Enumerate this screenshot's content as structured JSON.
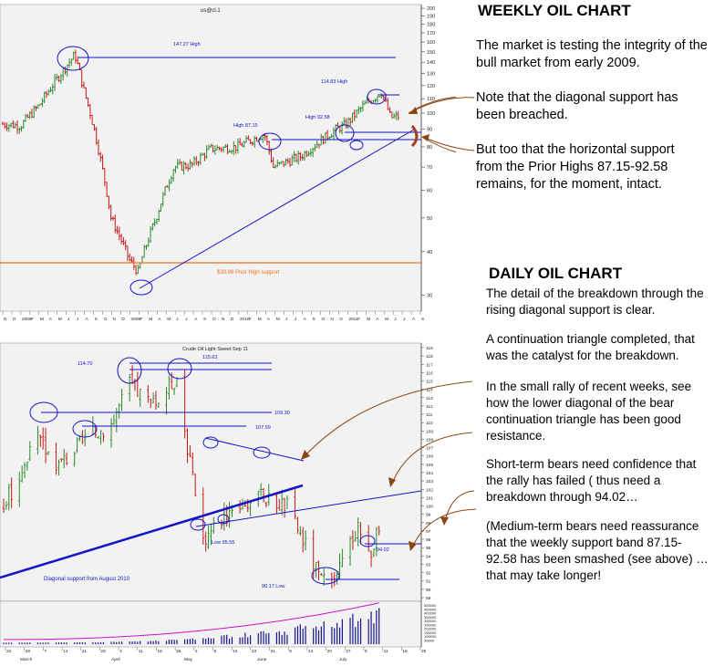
{
  "weekly": {
    "heading": "WEEKLY OIL CHART",
    "chart_title": "us@cl.1",
    "paragraphs": [
      "The market is testing the integrity of the bull market from early 2009.",
      "Note that the diagonal support has been breached.",
      "But too that the horizontal support from the Prior Highs 87.15-92.58 remains, for the moment, intact."
    ],
    "annotations": {
      "high_147": "147.27 High",
      "high_114": "114.83 High",
      "high_87": "High 87.15",
      "high_92": "High 92.58",
      "support_39": "$39.99 Prior High support"
    },
    "colors": {
      "up": "#2a8a2a",
      "down": "#c81818",
      "line": "#1414c8",
      "support": "#f07020",
      "bg": "#f2f2f2"
    }
  },
  "daily": {
    "heading": "DAILY OIL CHART",
    "chart_title": "Crude Oil Light Sweet Sep 11",
    "paragraphs": [
      "The detail of the breakdown through the rising diagonal support is clear.",
      "A continuation triangle completed, that was the catalyst for the breakdown.",
      "In the small rally of recent weeks, see how the lower diagonal of the bear continuation triangle has been good resistance.",
      "Short-term bears need confidence that the rally has failed ( thus need a breakdown through 94.02…",
      "(Medium-term bears need reassurance that the weekly support band 87.15-92.58 has been smashed (see above) … that may take longer!"
    ],
    "annotations": {
      "h114_70": "114.70",
      "h115_63": "115.63",
      "h109_30": "109.30",
      "h107_59": "107.59",
      "low_95": "Low 95.55",
      "low_90": "90.17 Low",
      "l94_02": "94.02",
      "diag": "Diagonal support from August 2010"
    },
    "colors": {
      "up": "#2a8a2a",
      "down": "#c81818",
      "line": "#1414c8",
      "volume": "#14148c",
      "oi": "#c814c8",
      "bg": "#f2f2f2"
    }
  },
  "chart_data": [
    {
      "type": "candlestick",
      "title": "us@cl.1",
      "frequency": "weekly",
      "yaxis_scale": "log",
      "yaxis_ticks": [
        30,
        40,
        50,
        60,
        70,
        80,
        90,
        100,
        110,
        120,
        130,
        140,
        150,
        160,
        170,
        180,
        190,
        200
      ],
      "xaxis_ticks": [
        "N",
        "D",
        "2008",
        "F",
        "M",
        "A",
        "M",
        "J",
        "J",
        "A",
        "S",
        "O",
        "N",
        "D",
        "2009",
        "F",
        "M",
        "A",
        "M",
        "J",
        "J",
        "A",
        "S",
        "O",
        "N",
        "D",
        "2010",
        "F",
        "M",
        "A",
        "M",
        "J",
        "J",
        "A",
        "S",
        "O",
        "N",
        "D",
        "2011",
        "F",
        "M",
        "A",
        "M",
        "J",
        "J",
        "A",
        "S"
      ],
      "approx_close_path": [
        {
          "date": "2007-11",
          "price": 93
        },
        {
          "date": "2008-01",
          "price": 92
        },
        {
          "date": "2008-03",
          "price": 105
        },
        {
          "date": "2008-05",
          "price": 125
        },
        {
          "date": "2008-07",
          "price": 147.27
        },
        {
          "date": "2008-08",
          "price": 116
        },
        {
          "date": "2008-10",
          "price": 70
        },
        {
          "date": "2008-11",
          "price": 50
        },
        {
          "date": "2009-01",
          "price": 38
        },
        {
          "date": "2009-02",
          "price": 35
        },
        {
          "date": "2009-04",
          "price": 50
        },
        {
          "date": "2009-06",
          "price": 70
        },
        {
          "date": "2009-08",
          "price": 71
        },
        {
          "date": "2009-10",
          "price": 79
        },
        {
          "date": "2010-01",
          "price": 80
        },
        {
          "date": "2010-04",
          "price": 87.15
        },
        {
          "date": "2010-05",
          "price": 70
        },
        {
          "date": "2010-08",
          "price": 75
        },
        {
          "date": "2010-12",
          "price": 90
        },
        {
          "date": "2011-01",
          "price": 92.58
        },
        {
          "date": "2011-03",
          "price": 105
        },
        {
          "date": "2011-05",
          "price": 114.83
        },
        {
          "date": "2011-06",
          "price": 97
        },
        {
          "date": "2011-07",
          "price": 98
        }
      ],
      "horizontal_lines": [
        147.27,
        114.83,
        92.58,
        87.15,
        39.99
      ],
      "diagonal_support": [
        {
          "date": "2009-02",
          "price": 33
        },
        {
          "date": "2011-07",
          "price": 100
        }
      ]
    },
    {
      "type": "candlestick",
      "title": "Crude Oil Light Sweet Sep 11",
      "frequency": "daily",
      "yaxis_ticks": [
        89,
        90,
        91,
        92,
        93,
        94,
        95,
        96,
        97,
        98,
        99,
        100,
        101,
        102,
        103,
        104,
        105,
        106,
        107,
        108,
        109,
        110,
        111,
        112,
        113,
        114,
        115,
        116,
        117,
        118,
        119
      ],
      "volume_ticks": [
        50000,
        100000,
        150000,
        200000,
        250000,
        300000,
        350000,
        400000,
        450000,
        500000
      ],
      "xaxis_ticks": [
        "22",
        "28",
        "7",
        "14",
        "21",
        "28",
        "4",
        "11",
        "18",
        "25",
        "2",
        "9",
        "16",
        "23",
        "31",
        "6",
        "13",
        "20",
        "27",
        "5",
        "11",
        "18",
        "25"
      ],
      "month_labels": [
        "March",
        "April",
        "May",
        "June",
        "July"
      ],
      "approx_close_path": [
        {
          "date": "2011-02-22",
          "price": 100
        },
        {
          "date": "2011-03-07",
          "price": 108
        },
        {
          "date": "2011-03-15",
          "price": 105
        },
        {
          "date": "2011-03-25",
          "price": 108
        },
        {
          "date": "2011-04-04",
          "price": 110
        },
        {
          "date": "2011-04-11",
          "price": 114.7
        },
        {
          "date": "2011-04-20",
          "price": 112
        },
        {
          "date": "2011-04-29",
          "price": 115.63
        },
        {
          "date": "2011-05-05",
          "price": 103
        },
        {
          "date": "2011-05-09",
          "price": 96
        },
        {
          "date": "2011-05-20",
          "price": 100
        },
        {
          "date": "2011-06-01",
          "price": 101
        },
        {
          "date": "2011-06-10",
          "price": 100
        },
        {
          "date": "2011-06-16",
          "price": 96
        },
        {
          "date": "2011-06-23",
          "price": 91
        },
        {
          "date": "2011-06-27",
          "price": 90.17
        },
        {
          "date": "2011-07-07",
          "price": 98
        },
        {
          "date": "2011-07-11",
          "price": 94.02
        },
        {
          "date": "2011-07-15",
          "price": 97
        }
      ],
      "horizontal_lines": [
        115.63,
        114.7,
        109.3,
        107.59,
        94.02,
        90.17
      ],
      "volume_peak": 500000
    }
  ]
}
